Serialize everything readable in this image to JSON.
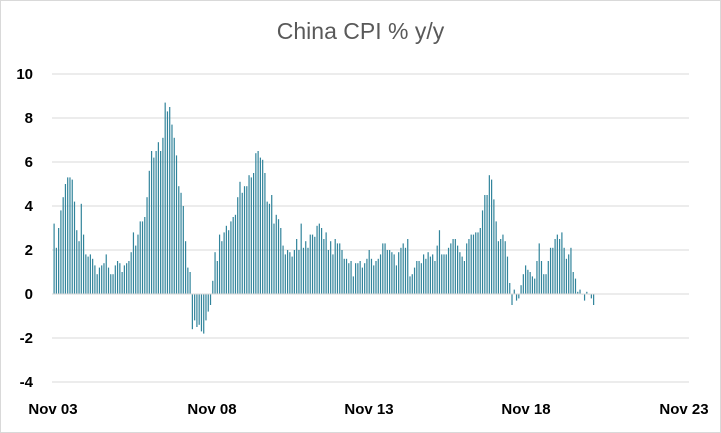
{
  "chart_data": {
    "type": "bar",
    "title": "China CPI % y/y",
    "xlabel": "",
    "ylabel": "",
    "ylim": [
      -4,
      10
    ],
    "yticks": [
      "10",
      "8",
      "6",
      "4",
      "2",
      "0",
      "-2",
      "-4"
    ],
    "xtick_labels": [
      "Nov 03",
      "Nov 08",
      "Nov 13",
      "Nov 18",
      "Nov 23"
    ],
    "grid": true,
    "bar_color": "#31849b",
    "start": "Nov 03",
    "frequency": "monthly",
    "values": [
      3.2,
      2.1,
      3.0,
      3.8,
      4.4,
      5.0,
      5.3,
      5.3,
      5.2,
      4.2,
      2.9,
      2.4,
      4.1,
      2.7,
      1.8,
      1.7,
      1.8,
      1.6,
      1.3,
      0.9,
      1.2,
      1.3,
      1.4,
      1.8,
      1.2,
      0.9,
      0.9,
      1.3,
      1.5,
      1.4,
      1.0,
      1.3,
      1.4,
      1.5,
      1.9,
      2.8,
      2.2,
      2.7,
      3.3,
      3.3,
      3.5,
      4.4,
      5.6,
      6.5,
      6.2,
      6.5,
      6.9,
      6.5,
      7.1,
      8.7,
      8.3,
      8.5,
      7.7,
      7.1,
      6.3,
      4.9,
      4.6,
      4.0,
      2.4,
      1.2,
      1.0,
      -1.6,
      -1.2,
      -1.5,
      -1.4,
      -1.7,
      -1.8,
      -1.2,
      -0.8,
      -0.5,
      0.6,
      1.9,
      1.5,
      2.7,
      2.4,
      2.8,
      3.1,
      2.9,
      3.3,
      3.5,
      3.6,
      4.4,
      5.1,
      4.6,
      4.9,
      4.9,
      5.4,
      5.3,
      5.5,
      6.4,
      6.5,
      6.2,
      6.1,
      5.5,
      4.2,
      4.1,
      4.5,
      3.2,
      3.6,
      3.4,
      3.0,
      2.2,
      1.8,
      2.0,
      1.9,
      1.7,
      2.0,
      2.5,
      2.0,
      3.2,
      2.1,
      2.4,
      2.1,
      2.7,
      2.7,
      2.6,
      3.1,
      3.2,
      3.0,
      2.5,
      2.8,
      2.0,
      2.4,
      1.8,
      2.5,
      2.3,
      2.3,
      2.0,
      1.6,
      1.6,
      1.4,
      1.5,
      0.8,
      1.4,
      1.4,
      1.5,
      1.2,
      1.4,
      1.6,
      2.0,
      1.6,
      1.3,
      1.5,
      1.6,
      1.8,
      2.3,
      2.3,
      2.0,
      2.0,
      1.9,
      1.8,
      1.3,
      1.9,
      2.1,
      2.3,
      2.1,
      2.5,
      0.8,
      0.9,
      1.2,
      1.5,
      1.5,
      1.4,
      1.8,
      1.6,
      1.9,
      1.7,
      1.8,
      1.5,
      2.2,
      2.9,
      1.8,
      1.8,
      1.8,
      2.1,
      2.3,
      2.5,
      2.5,
      2.2,
      1.9,
      1.7,
      1.5,
      2.3,
      2.5,
      2.7,
      2.7,
      2.8,
      2.8,
      3.0,
      3.8,
      4.5,
      4.5,
      5.4,
      5.2,
      4.3,
      3.3,
      2.4,
      2.5,
      2.7,
      2.4,
      1.7,
      0.5,
      -0.5,
      0.2,
      -0.3,
      -0.2,
      0.4,
      0.9,
      1.3,
      1.1,
      1.0,
      0.8,
      0.7,
      1.5,
      2.3,
      1.5,
      0.9,
      0.9,
      1.5,
      2.1,
      2.1,
      2.5,
      2.7,
      2.5,
      2.8,
      2.1,
      1.6,
      1.8,
      2.1,
      1.0,
      0.7,
      0.1,
      0.2,
      0.0,
      -0.3,
      0.1,
      0.0,
      -0.2,
      -0.5
    ]
  }
}
